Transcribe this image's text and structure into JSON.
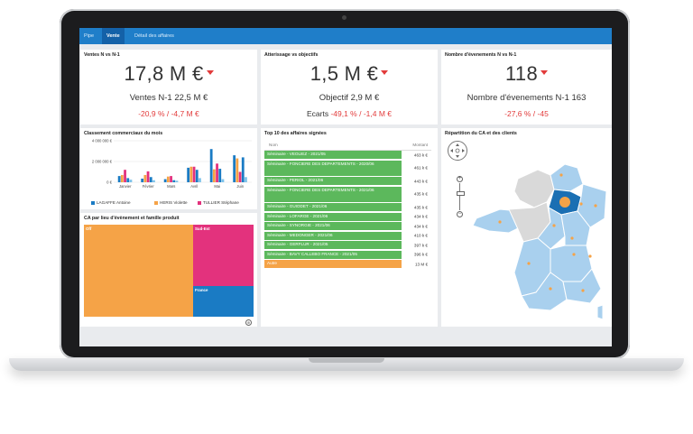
{
  "nav": {
    "tabs": [
      {
        "label": "Pipe",
        "active": false
      },
      {
        "label": "Vente",
        "active": true
      },
      {
        "label": "Détail des affaires",
        "active": false
      }
    ]
  },
  "kpis": [
    {
      "title": "Ventes N vs N-1",
      "value": "17,8 M €",
      "sub": "Ventes N-1 22,5 M €",
      "variation": "-20,9 % / -4,7 M €"
    },
    {
      "title": "Atterissage vs objectifs",
      "value": "1,5 M €",
      "sub": "Objectif 2,9 M €",
      "variation_prefix": "Ecarts ",
      "variation": "-49,1 % / -1,4 M €"
    },
    {
      "title": "Nombre d'évenements N vs N-1",
      "value": "118",
      "sub": "Nombre d'évenements N-1 163",
      "variation": "-27,6 % / -45"
    }
  ],
  "colors": {
    "nav": "#1f7ec9",
    "nav_active": "#1461a8",
    "negative": "#e23b3b",
    "green": "#5cb85c",
    "orange": "#f5a347",
    "pink": "#e3327d",
    "blue": "#1a7bc4",
    "map_light": "#a9d0ee",
    "map_grey": "#d9d9d9",
    "map_dark": "#1a6fb3"
  },
  "ranking": {
    "title": "Classement commerciaux du mois",
    "y_ticks": [
      "4 000 000 €",
      "2 000 000 €",
      "0 €"
    ],
    "legend": [
      "LAGAFFE Antoine",
      "HERIS Violette",
      "TULLIER Stéphane"
    ]
  },
  "chart_data": {
    "type": "bar",
    "title": "Classement commerciaux du mois",
    "categories": [
      "Janvier",
      "Février",
      "Mars",
      "Avril",
      "Mai",
      "Juin"
    ],
    "ylim": [
      0,
      4000000
    ],
    "series": [
      {
        "name": "LAGAFFE Antoine",
        "color": "#1a7bc4",
        "values": [
          600000,
          350000,
          300000,
          1400000,
          3200000,
          2600000
        ]
      },
      {
        "name": "HERIS Violette",
        "color": "#f5a347",
        "values": [
          700000,
          700000,
          550000,
          1500000,
          1250000,
          2300000
        ]
      },
      {
        "name": "TULLIER Stéphane",
        "color": "#e3327d",
        "values": [
          1200000,
          1050000,
          600000,
          1500000,
          1800000,
          1000000
        ]
      },
      {
        "name": "",
        "color": "#1a7bc4",
        "values": [
          400000,
          500000,
          200000,
          1200000,
          1300000,
          2400000
        ]
      },
      {
        "name": "",
        "color": "#7fc3ea",
        "values": [
          250000,
          200000,
          150000,
          400000,
          300000,
          500000
        ]
      }
    ]
  },
  "treemap": {
    "title": "CA par lieu d'évènement et famille produit",
    "labels": [
      "Off",
      "Sud-Est",
      "France"
    ]
  },
  "top10": {
    "title": "Top 10 des affaires signées",
    "col_name": "Nom",
    "col_amount": "Montant",
    "rows": [
      {
        "name": "Séminaire - VEOLIEZ - 2021/05",
        "amount": "463 k €"
      },
      {
        "name": "Séminaire - FONCIERE DES DEPARTEMENTS - 2020/06",
        "amount": "461 k €"
      },
      {
        "name": "Séminaire - PERIOL - 2021/06",
        "amount": "443 k €"
      },
      {
        "name": "Séminaire - FONCIERE DES DEPARTEMENTS - 2021/06",
        "amount": "435 k €"
      },
      {
        "name": "Séminaire - GUIODET - 2021/06",
        "amount": "435 k €"
      },
      {
        "name": "Séminaire - LOFARGE - 2021/06",
        "amount": "434 k €"
      },
      {
        "name": "Séminaire - SYNORGIE - 2021/06",
        "amount": "434 k €"
      },
      {
        "name": "Séminaire - MEDONGER - 2021/06",
        "amount": "410 k €"
      },
      {
        "name": "Séminaire - GERFLUR - 2021/05",
        "amount": "397 k €"
      },
      {
        "name": "Séminaire - BAVY CALLEBO FRANCE - 2021/05",
        "amount": "396 k €"
      },
      {
        "name": "Autre",
        "amount": "13 M €"
      }
    ]
  },
  "map": {
    "title": "Répartition du CA et des clients",
    "zoom_in": "+",
    "zoom_out": "−"
  }
}
